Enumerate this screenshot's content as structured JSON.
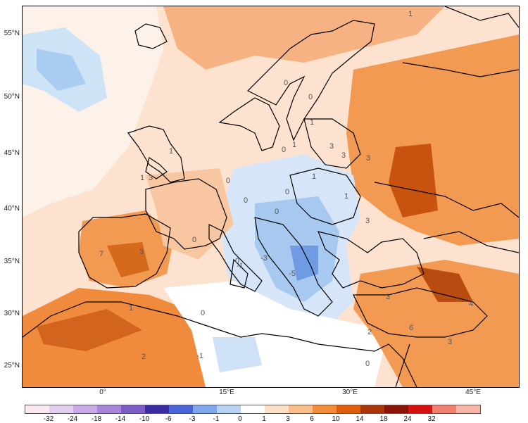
{
  "latitude_labels": [
    "55°N",
    "50°N",
    "45°N",
    "40°N",
    "35°N",
    "30°N",
    "25°N"
  ],
  "longitude_labels": [
    "0°",
    "15°E",
    "30°E",
    "45°E"
  ],
  "colorbar": {
    "ticks": [
      "-32",
      "-24",
      "-18",
      "-14",
      "-10",
      "-6",
      "-3",
      "-1",
      "0",
      "1",
      "3",
      "6",
      "10",
      "14",
      "18",
      "24",
      "32"
    ],
    "colors": [
      "#fbe8f3",
      "#e2cfee",
      "#c9a9e6",
      "#a885d8",
      "#7c5cc5",
      "#3b2ba0",
      "#4a63d6",
      "#7fa7ec",
      "#b7d2f5",
      "#ffffff",
      "#fde0c8",
      "#fbbf8d",
      "#f28c3b",
      "#e05e0d",
      "#a8350a",
      "#8a1308",
      "#d41010",
      "#f08070",
      "#f7b5a8"
    ]
  },
  "contour_labels": [
    "0",
    "0",
    "0",
    "0",
    "0",
    "0",
    "0",
    "0",
    "0",
    "1",
    "1",
    "1",
    "1",
    "1",
    "1",
    "3",
    "3",
    "3",
    "3",
    "3",
    "3",
    "3",
    "4",
    "6",
    "7",
    "2",
    "-1",
    "-1",
    "-3",
    "-5",
    "3",
    "0",
    "1",
    "0",
    "2",
    "1"
  ]
}
